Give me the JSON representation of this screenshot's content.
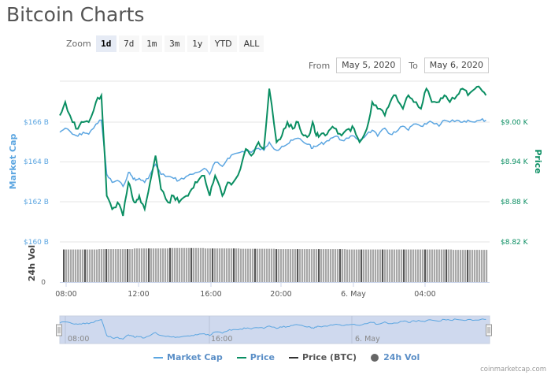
{
  "header": {
    "title": "Bitcoin Charts"
  },
  "zoom": {
    "label": "Zoom",
    "buttons": [
      {
        "label": "1d",
        "active": true
      },
      {
        "label": "7d",
        "active": false
      },
      {
        "label": "1m",
        "active": false
      },
      {
        "label": "3m",
        "active": false
      },
      {
        "label": "1y",
        "active": false
      },
      {
        "label": "YTD",
        "active": false
      },
      {
        "label": "ALL",
        "active": false
      }
    ]
  },
  "range": {
    "from_label": "From",
    "from_value": "May 5, 2020",
    "to_label": "To",
    "to_value": "May 6, 2020"
  },
  "legend": {
    "items": [
      {
        "label": "Market Cap",
        "color": "#5ca6e1",
        "shape": "line"
      },
      {
        "label": "Price",
        "color": "#0a8e62",
        "shape": "line"
      },
      {
        "label": "Price (BTC)",
        "color": "#333333",
        "shape": "line"
      },
      {
        "label": "24h Vol",
        "color": "#666666",
        "shape": "dot"
      }
    ]
  },
  "credit": "coinmarketcap.com",
  "colors": {
    "market_cap": "#5ca6e1",
    "price": "#0a8e62",
    "volume": "#999999",
    "navigator_fill": "#cfd9ee",
    "grid": "#e6e6e6"
  },
  "axes": {
    "left_title": "Market Cap",
    "right_title": "Price",
    "volume_title": "24h Vol",
    "left_ticks": [
      "$166 B",
      "$164 B",
      "$162 B",
      "$160 B"
    ],
    "right_ticks": [
      "$9.00 K",
      "$8.94 K",
      "$8.88 K",
      "$8.82 K"
    ],
    "volume_ticks": [
      "0"
    ],
    "x_ticks": [
      "08:00",
      "12:00",
      "16:00",
      "20:00",
      "6. May",
      "04:00"
    ],
    "navigator_ticks": [
      "08:00",
      "16:00",
      "6. May"
    ]
  },
  "chart_data": {
    "type": "line",
    "title": "Bitcoin Charts",
    "xlabel": "",
    "x_range": [
      "May 5, 2020 ~07:30",
      "May 6, 2020 ~07:00"
    ],
    "x_ticks": [
      "08:00",
      "12:00",
      "16:00",
      "20:00",
      "6. May",
      "04:00"
    ],
    "y_left": {
      "label": "Market Cap",
      "ticks": [
        "$160 B",
        "$162 B",
        "$164 B",
        "$166 B"
      ],
      "range_B": [
        160,
        168
      ]
    },
    "y_right": {
      "label": "Price",
      "ticks": [
        "$8.82 K",
        "$8.88 K",
        "$8.94 K",
        "$9.00 K"
      ],
      "range_K": [
        8.82,
        9.06
      ]
    },
    "grid": true,
    "legend_position": "bottom",
    "series": [
      {
        "name": "Market Cap",
        "unit": "$B",
        "x_hours": [
          0,
          0.3,
          0.7,
          1.0,
          1.3,
          1.6,
          2.0,
          2.3,
          2.6,
          2.9,
          3.2,
          3.5,
          3.8,
          4.0,
          4.2,
          4.4,
          4.7,
          5.0,
          5.3,
          5.6,
          6.0,
          6.3,
          6.6,
          7.0,
          7.3,
          7.6,
          8.0,
          8.3,
          8.6,
          9.0,
          9.3,
          9.6,
          10.0,
          10.3,
          10.6,
          11.0,
          11.3,
          11.6,
          12.0,
          12.3,
          12.6,
          12.9,
          13.2,
          13.5,
          13.8,
          14.0,
          14.2,
          14.4,
          14.7,
          15.0,
          15.3,
          15.6,
          16.0,
          16.3,
          16.6,
          17.0,
          17.3,
          17.6,
          18.0,
          18.3,
          18.6,
          19.0,
          19.3,
          19.6,
          20.0,
          20.3,
          20.6,
          21.0,
          21.3,
          21.6,
          22.0,
          22.3,
          22.6,
          23.0,
          23.3,
          23.6
        ],
        "values": [
          165.5,
          165.7,
          165.4,
          165.3,
          165.5,
          165.4,
          165.9,
          166.1,
          163.4,
          163.0,
          163.1,
          162.8,
          163.5,
          163.3,
          163.1,
          163.2,
          163.0,
          163.4,
          163.9,
          163.4,
          163.3,
          163.2,
          163.1,
          163.3,
          163.4,
          163.5,
          163.7,
          163.4,
          164.0,
          163.8,
          164.2,
          164.4,
          164.5,
          164.6,
          164.5,
          164.7,
          164.6,
          165.0,
          164.6,
          164.8,
          164.9,
          165.1,
          165.2,
          165.0,
          164.9,
          164.7,
          164.8,
          164.9,
          165.0,
          165.2,
          165.3,
          165.1,
          165.2,
          165.3,
          165.1,
          165.4,
          165.6,
          165.3,
          165.7,
          165.4,
          165.5,
          165.8,
          165.6,
          165.9,
          165.8,
          165.9,
          166.0,
          165.8,
          166.1,
          166.0,
          166.1,
          166.0,
          166.1,
          166.0,
          166.1,
          166.1
        ]
      },
      {
        "name": "Price",
        "unit": "$K",
        "x_hours": [
          0,
          0.3,
          0.7,
          1.0,
          1.3,
          1.6,
          2.0,
          2.3,
          2.6,
          2.9,
          3.2,
          3.5,
          3.8,
          4.0,
          4.2,
          4.4,
          4.7,
          5.0,
          5.3,
          5.6,
          6.0,
          6.3,
          6.6,
          7.0,
          7.3,
          7.6,
          8.0,
          8.3,
          8.6,
          9.0,
          9.3,
          9.6,
          10.0,
          10.3,
          10.6,
          11.0,
          11.3,
          11.6,
          12.0,
          12.3,
          12.6,
          12.9,
          13.2,
          13.5,
          13.8,
          14.0,
          14.2,
          14.4,
          14.7,
          15.0,
          15.3,
          15.6,
          16.0,
          16.3,
          16.6,
          17.0,
          17.3,
          17.6,
          18.0,
          18.3,
          18.6,
          19.0,
          19.3,
          19.6,
          20.0,
          20.3,
          20.6,
          21.0,
          21.3,
          21.6,
          22.0,
          22.3,
          22.6,
          23.0,
          23.3,
          23.6
        ],
        "values": [
          9.01,
          9.03,
          9.0,
          8.99,
          9.0,
          9.0,
          9.03,
          9.04,
          8.89,
          8.87,
          8.88,
          8.86,
          8.91,
          8.89,
          8.88,
          8.89,
          8.87,
          8.91,
          8.95,
          8.9,
          8.88,
          8.89,
          8.88,
          8.89,
          8.9,
          8.91,
          8.92,
          8.89,
          8.92,
          8.89,
          8.91,
          8.91,
          8.93,
          8.96,
          8.95,
          8.97,
          8.96,
          9.05,
          8.97,
          8.98,
          9.0,
          8.99,
          9.0,
          8.98,
          8.98,
          9.0,
          8.98,
          8.98,
          8.98,
          8.99,
          8.99,
          8.98,
          8.99,
          8.99,
          8.97,
          8.99,
          9.03,
          9.02,
          9.01,
          9.03,
          9.04,
          9.02,
          9.04,
          9.03,
          9.02,
          9.05,
          9.03,
          9.03,
          9.04,
          9.03,
          9.04,
          9.05,
          9.04,
          9.05,
          9.05,
          9.04
        ]
      },
      {
        "name": "24h Vol",
        "type": "bar",
        "note": "near-constant bars across the full range, slightly taller around 11:00–14:00",
        "relative_height": [
          0.92,
          0.93,
          0.95,
          0.96,
          0.95,
          0.94,
          0.93,
          0.93,
          0.92,
          0.92,
          0.92,
          0.91
        ]
      }
    ]
  }
}
